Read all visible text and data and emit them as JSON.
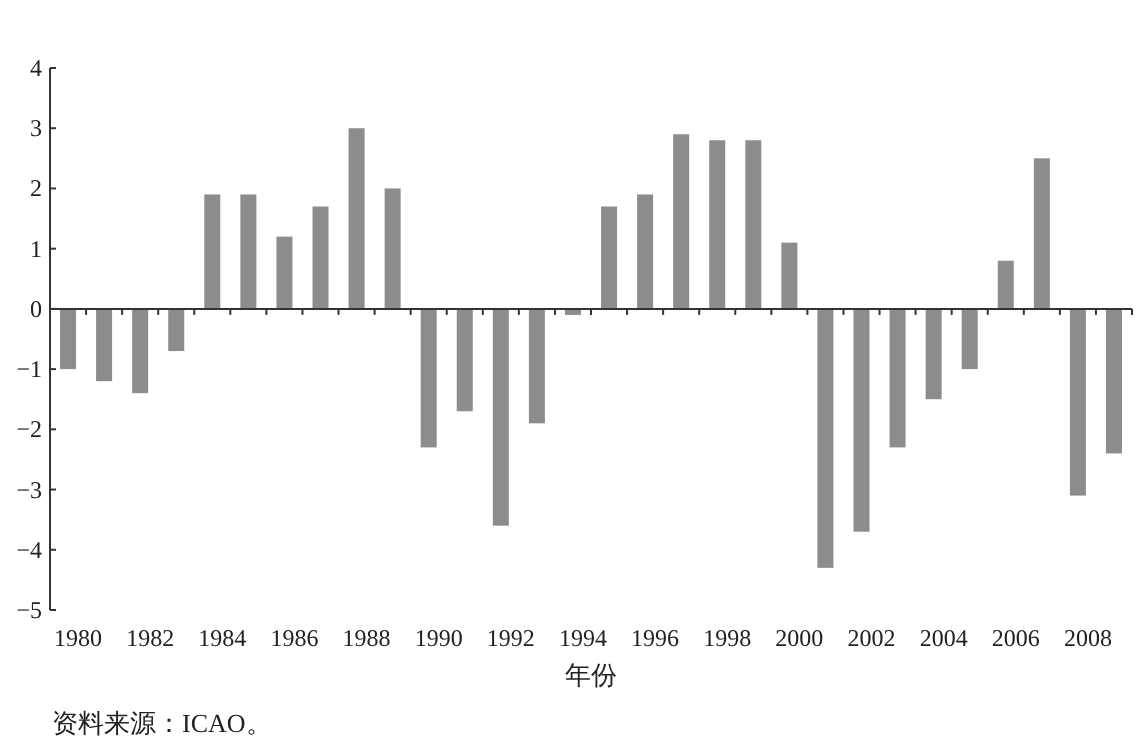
{
  "chart_data": {
    "type": "bar",
    "xlabel": "年份",
    "annotations": [
      "资料来源：ICAO。"
    ],
    "categories": [
      "1980",
      null,
      "1982",
      null,
      "1984",
      null,
      "1986",
      null,
      "1988",
      null,
      "1990",
      null,
      "1992",
      null,
      "1994",
      null,
      "1996",
      null,
      "1998",
      null,
      "2000",
      null,
      "2002",
      null,
      "2004",
      null,
      "2006",
      null,
      "2008",
      null
    ],
    "values": [
      -1.0,
      -1.2,
      -1.4,
      -0.7,
      1.9,
      1.9,
      1.2,
      1.7,
      3.0,
      2.0,
      -2.3,
      -1.7,
      -3.6,
      -1.9,
      -0.1,
      1.7,
      1.9,
      2.9,
      2.8,
      2.8,
      1.1,
      -4.3,
      -3.7,
      -2.3,
      -1.5,
      -1.0,
      0.8,
      2.5,
      -3.1,
      -2.4
    ],
    "color": "#8c8c8c",
    "ylim": [
      -5,
      4
    ],
    "yticks": [
      -5,
      -4,
      -3,
      -2,
      -1,
      0,
      1,
      2,
      3,
      4
    ]
  }
}
